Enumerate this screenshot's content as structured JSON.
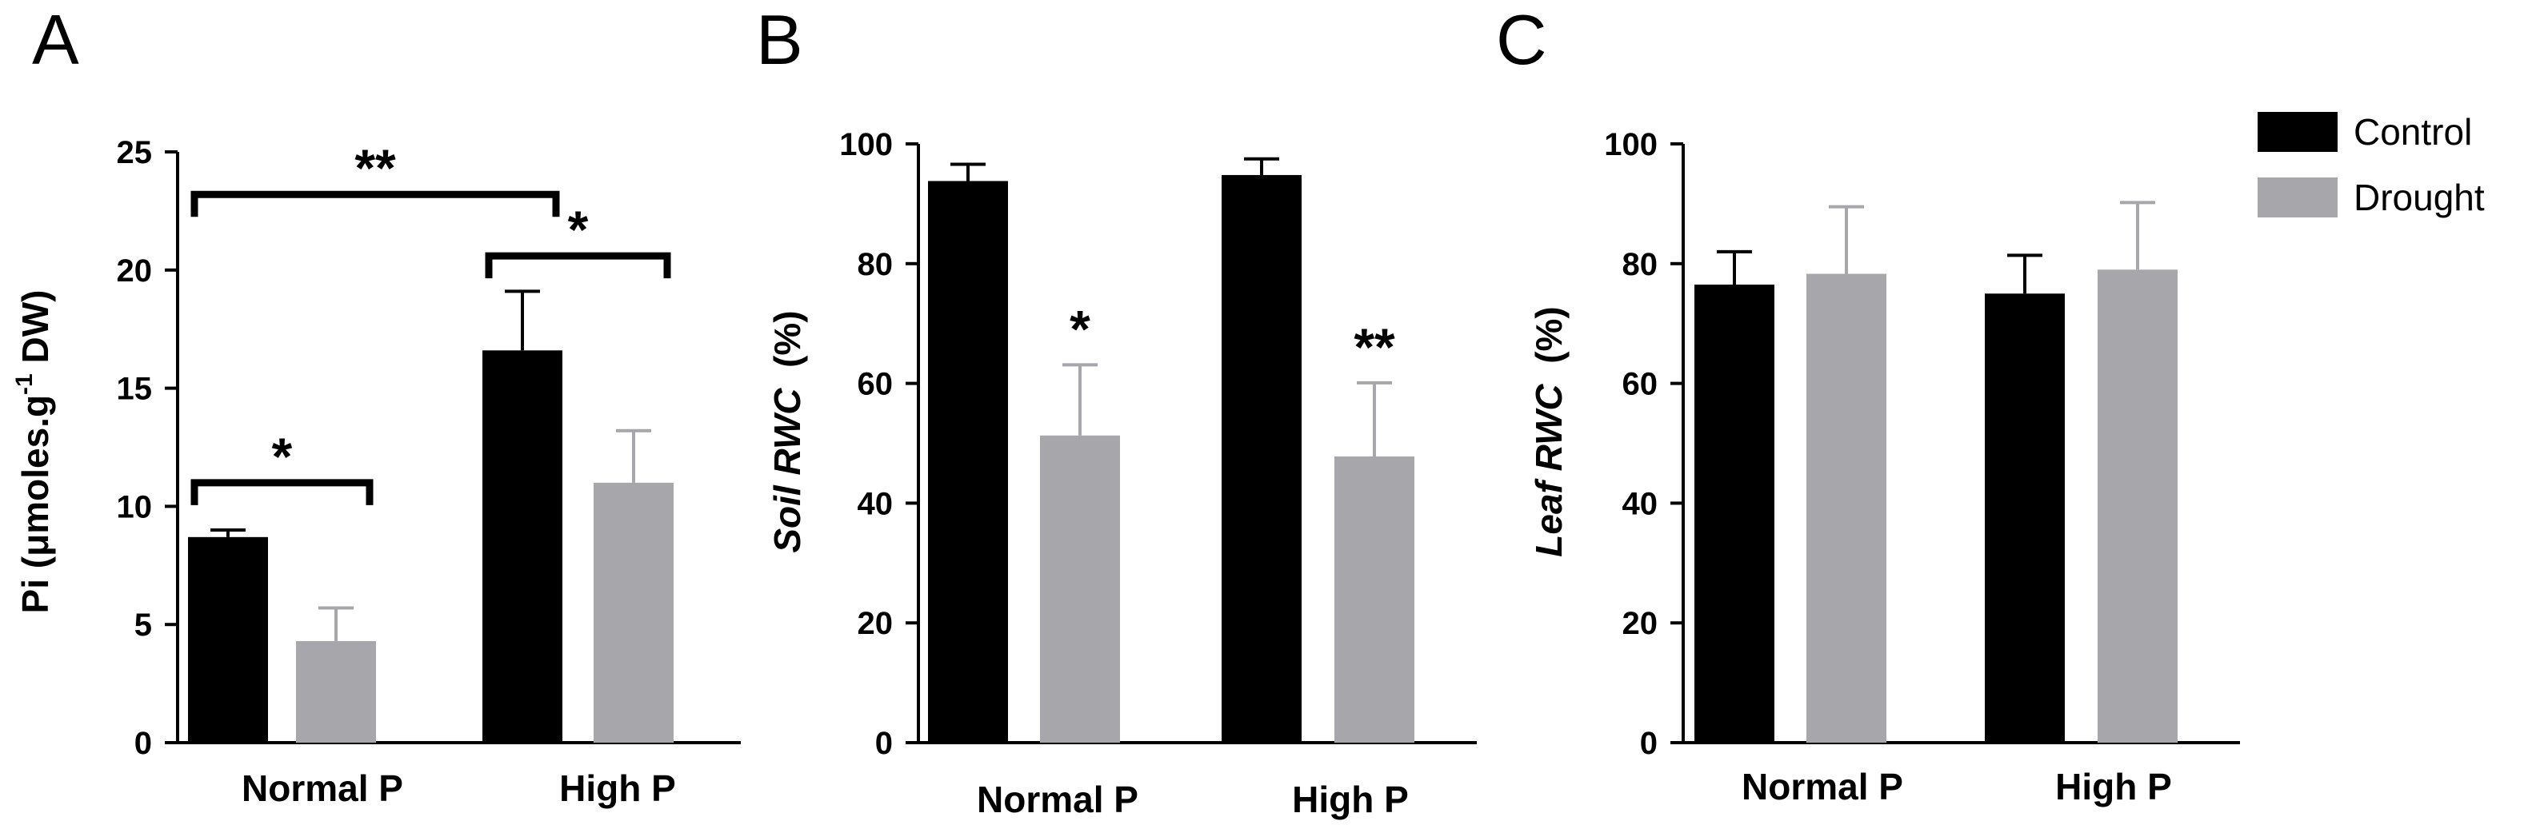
{
  "chart_data": [
    {
      "type": "bar",
      "panel_label": "A",
      "ylabel_parts": [
        "Pi (",
        "μ",
        "moles.g",
        "-1",
        " DW)"
      ],
      "ylim": [
        0,
        25
      ],
      "yticks": [
        "0",
        "5",
        "10",
        "15",
        "20",
        "25"
      ],
      "categories": [
        "Normal P",
        "High P"
      ],
      "series": [
        {
          "name": "Control",
          "values": [
            8.7,
            16.6
          ],
          "errors": [
            0.3,
            2.5
          ]
        },
        {
          "name": "Drought",
          "values": [
            4.3,
            11.0
          ],
          "errors": [
            1.4,
            2.2
          ]
        }
      ],
      "brackets": [
        {
          "from": [
            0,
            0
          ],
          "to": [
            0,
            1
          ],
          "y": 11.0,
          "label": "*"
        },
        {
          "from": [
            1,
            0
          ],
          "to": [
            1,
            1
          ],
          "y": 20.6,
          "label": "*"
        },
        {
          "from": [
            0,
            0
          ],
          "to": [
            1,
            0
          ],
          "y": 23.2,
          "label": "**"
        }
      ],
      "bar_labels": []
    },
    {
      "type": "bar",
      "panel_label": "B",
      "ylabel_parts": [
        "Soil RWC",
        "  (%)"
      ],
      "ylim": [
        0,
        100
      ],
      "yticks": [
        "0",
        "20",
        "40",
        "60",
        "80",
        "100"
      ],
      "categories": [
        "Normal P",
        "High P"
      ],
      "series": [
        {
          "name": "Control",
          "values": [
            93.8,
            94.8
          ],
          "errors": [
            2.8,
            2.7
          ]
        },
        {
          "name": "Drought",
          "values": [
            51.3,
            47.8
          ],
          "errors": [
            11.8,
            12.3
          ]
        }
      ],
      "brackets": [],
      "bar_labels": [
        {
          "category": 0,
          "series": 1,
          "label": "*"
        },
        {
          "category": 1,
          "series": 1,
          "label": "**"
        }
      ]
    },
    {
      "type": "bar",
      "panel_label": "C",
      "ylabel_parts": [
        "Leaf RWC",
        "  (%)"
      ],
      "ylim": [
        0,
        100
      ],
      "yticks": [
        "0",
        "20",
        "40",
        "60",
        "80",
        "100"
      ],
      "categories": [
        "Normal P",
        "High P"
      ],
      "series": [
        {
          "name": "Control",
          "values": [
            76.5,
            75.0
          ],
          "errors": [
            5.5,
            6.4
          ]
        },
        {
          "name": "Drought",
          "values": [
            78.3,
            79.0
          ],
          "errors": [
            11.2,
            11.2
          ]
        }
      ],
      "brackets": [],
      "bar_labels": []
    }
  ],
  "legend": {
    "items": [
      {
        "label": "Control",
        "color": "#000000"
      },
      {
        "label": "Drought",
        "color": "#a7a6aa"
      }
    ],
    "placement": "top-right"
  },
  "colors": {
    "control": "#000000",
    "drought": "#a7a6aa",
    "axis": "#000000"
  }
}
